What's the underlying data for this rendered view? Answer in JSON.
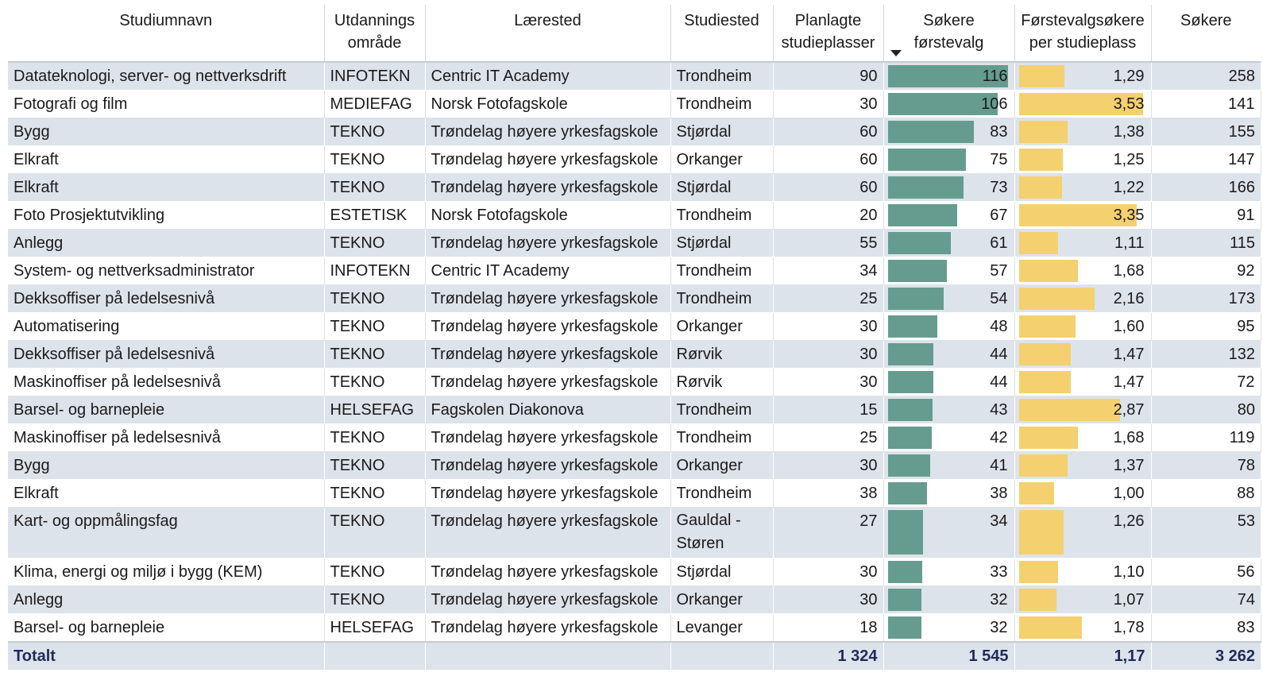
{
  "columns": [
    {
      "key": "name",
      "label": "Studiumnavn"
    },
    {
      "key": "area",
      "label": "Utdannings område"
    },
    {
      "key": "institution",
      "label": "Lærested"
    },
    {
      "key": "location",
      "label": "Studiested"
    },
    {
      "key": "places",
      "label": "Planlagte studieplasser"
    },
    {
      "key": "first_choice",
      "label": "Søkere førstevalg"
    },
    {
      "key": "ratio",
      "label": "Førstevalgsøkere per studieplass"
    },
    {
      "key": "applicants",
      "label": "Søkere"
    }
  ],
  "sort": {
    "column": "first_choice",
    "direction": "descending"
  },
  "colors": {
    "first_choice_bar": "#669c8f",
    "ratio_bar": "#f4d06f",
    "stripe": "#dde3ea",
    "total_text": "#1f2a5c"
  },
  "bar_scale": {
    "first_choice_max": 116,
    "ratio_max": 3.53
  },
  "rows": [
    {
      "name": "Datateknologi, server- og nettverksdrift",
      "area": "INFOTEKN",
      "institution": "Centric IT Academy",
      "location": "Trondheim",
      "places": "90",
      "first_choice": "116",
      "ratio": "1,29",
      "applicants": "258"
    },
    {
      "name": "Fotografi og film",
      "area": "MEDIEFAG",
      "institution": "Norsk Fotofagskole",
      "location": "Trondheim",
      "places": "30",
      "first_choice": "106",
      "ratio": "3,53",
      "applicants": "141"
    },
    {
      "name": "Bygg",
      "area": "TEKNO",
      "institution": "Trøndelag høyere yrkesfagskole",
      "location": "Stjørdal",
      "places": "60",
      "first_choice": "83",
      "ratio": "1,38",
      "applicants": "155"
    },
    {
      "name": "Elkraft",
      "area": "TEKNO",
      "institution": "Trøndelag høyere yrkesfagskole",
      "location": "Orkanger",
      "places": "60",
      "first_choice": "75",
      "ratio": "1,25",
      "applicants": "147"
    },
    {
      "name": "Elkraft",
      "area": "TEKNO",
      "institution": "Trøndelag høyere yrkesfagskole",
      "location": "Stjørdal",
      "places": "60",
      "first_choice": "73",
      "ratio": "1,22",
      "applicants": "166"
    },
    {
      "name": "Foto Prosjektutvikling",
      "area": "ESTETISK",
      "institution": "Norsk Fotofagskole",
      "location": "Trondheim",
      "places": "20",
      "first_choice": "67",
      "ratio": "3,35",
      "applicants": "91"
    },
    {
      "name": "Anlegg",
      "area": "TEKNO",
      "institution": "Trøndelag høyere yrkesfagskole",
      "location": "Stjørdal",
      "places": "55",
      "first_choice": "61",
      "ratio": "1,11",
      "applicants": "115"
    },
    {
      "name": "System- og nettverksadministrator",
      "area": "INFOTEKN",
      "institution": "Centric IT Academy",
      "location": "Trondheim",
      "places": "34",
      "first_choice": "57",
      "ratio": "1,68",
      "applicants": "92"
    },
    {
      "name": "Dekksoffiser på ledelsesnivå",
      "area": "TEKNO",
      "institution": "Trøndelag høyere yrkesfagskole",
      "location": "Trondheim",
      "places": "25",
      "first_choice": "54",
      "ratio": "2,16",
      "applicants": "173"
    },
    {
      "name": "Automatisering",
      "area": "TEKNO",
      "institution": "Trøndelag høyere yrkesfagskole",
      "location": "Orkanger",
      "places": "30",
      "first_choice": "48",
      "ratio": "1,60",
      "applicants": "95"
    },
    {
      "name": "Dekksoffiser på ledelsesnivå",
      "area": "TEKNO",
      "institution": "Trøndelag høyere yrkesfagskole",
      "location": "Rørvik",
      "places": "30",
      "first_choice": "44",
      "ratio": "1,47",
      "applicants": "132"
    },
    {
      "name": "Maskinoffiser på ledelsesnivå",
      "area": "TEKNO",
      "institution": "Trøndelag høyere yrkesfagskole",
      "location": "Rørvik",
      "places": "30",
      "first_choice": "44",
      "ratio": "1,47",
      "applicants": "72"
    },
    {
      "name": "Barsel- og barnepleie",
      "area": "HELSEFAG",
      "institution": "Fagskolen Diakonova",
      "location": "Trondheim",
      "places": "15",
      "first_choice": "43",
      "ratio": "2,87",
      "applicants": "80"
    },
    {
      "name": "Maskinoffiser på ledelsesnivå",
      "area": "TEKNO",
      "institution": "Trøndelag høyere yrkesfagskole",
      "location": "Trondheim",
      "places": "25",
      "first_choice": "42",
      "ratio": "1,68",
      "applicants": "119"
    },
    {
      "name": "Bygg",
      "area": "TEKNO",
      "institution": "Trøndelag høyere yrkesfagskole",
      "location": "Orkanger",
      "places": "30",
      "first_choice": "41",
      "ratio": "1,37",
      "applicants": "78"
    },
    {
      "name": "Elkraft",
      "area": "TEKNO",
      "institution": "Trøndelag høyere yrkesfagskole",
      "location": "Trondheim",
      "places": "38",
      "first_choice": "38",
      "ratio": "1,00",
      "applicants": "88"
    },
    {
      "name": "Kart- og oppmålingsfag",
      "area": "TEKNO",
      "institution": "Trøndelag høyere yrkesfagskole",
      "location": "Gauldal - Støren",
      "places": "27",
      "first_choice": "34",
      "ratio": "1,26",
      "applicants": "53"
    },
    {
      "name": "Klima, energi og miljø i bygg (KEM)",
      "area": "TEKNO",
      "institution": "Trøndelag høyere yrkesfagskole",
      "location": "Stjørdal",
      "places": "30",
      "first_choice": "33",
      "ratio": "1,10",
      "applicants": "56"
    },
    {
      "name": "Anlegg",
      "area": "TEKNO",
      "institution": "Trøndelag høyere yrkesfagskole",
      "location": "Orkanger",
      "places": "30",
      "first_choice": "32",
      "ratio": "1,07",
      "applicants": "74"
    },
    {
      "name": "Barsel- og barnepleie",
      "area": "HELSEFAG",
      "institution": "Trøndelag høyere yrkesfagskole",
      "location": "Levanger",
      "places": "18",
      "first_choice": "32",
      "ratio": "1,78",
      "applicants": "83"
    }
  ],
  "total": {
    "label": "Totalt",
    "places": "1 324",
    "first_choice": "1 545",
    "ratio": "1,17",
    "applicants": "3 262"
  }
}
